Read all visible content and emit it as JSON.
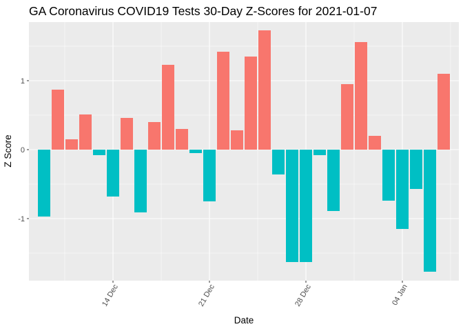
{
  "chart_data": {
    "type": "bar",
    "title": "GA Coronavirus COVID19 Tests 30-Day Z-Scores for 2021-01-07",
    "xlabel": "Date",
    "ylabel": "Z Score",
    "x_start": "2020-12-09",
    "x_end": "2021-01-07",
    "x_ticks": [
      {
        "label": "14 Dec",
        "date": "2020-12-14"
      },
      {
        "label": "21 Dec",
        "date": "2020-12-21"
      },
      {
        "label": "28 Dec",
        "date": "2020-12-28"
      },
      {
        "label": "04 Jan",
        "date": "2021-01-04"
      }
    ],
    "y_ticks": [
      {
        "label": "-1",
        "value": -1
      },
      {
        "label": "0",
        "value": 0
      },
      {
        "label": "1",
        "value": 1
      }
    ],
    "ylim": [
      -1.9,
      1.85
    ],
    "values": [
      -0.97,
      0.87,
      0.15,
      0.51,
      -0.08,
      -0.68,
      0.46,
      -0.91,
      0.4,
      1.23,
      0.3,
      -0.05,
      -0.75,
      1.42,
      0.28,
      1.35,
      1.73,
      -0.36,
      -1.63,
      -1.63,
      -0.08,
      -0.89,
      0.95,
      1.56,
      0.2,
      -0.74,
      -1.15,
      -0.57,
      -1.77,
      1.1
    ],
    "colors": {
      "positive": "#F8766D",
      "negative": "#00BFC4"
    },
    "grid": true,
    "background": "#EBEBEB",
    "legend": "none"
  }
}
